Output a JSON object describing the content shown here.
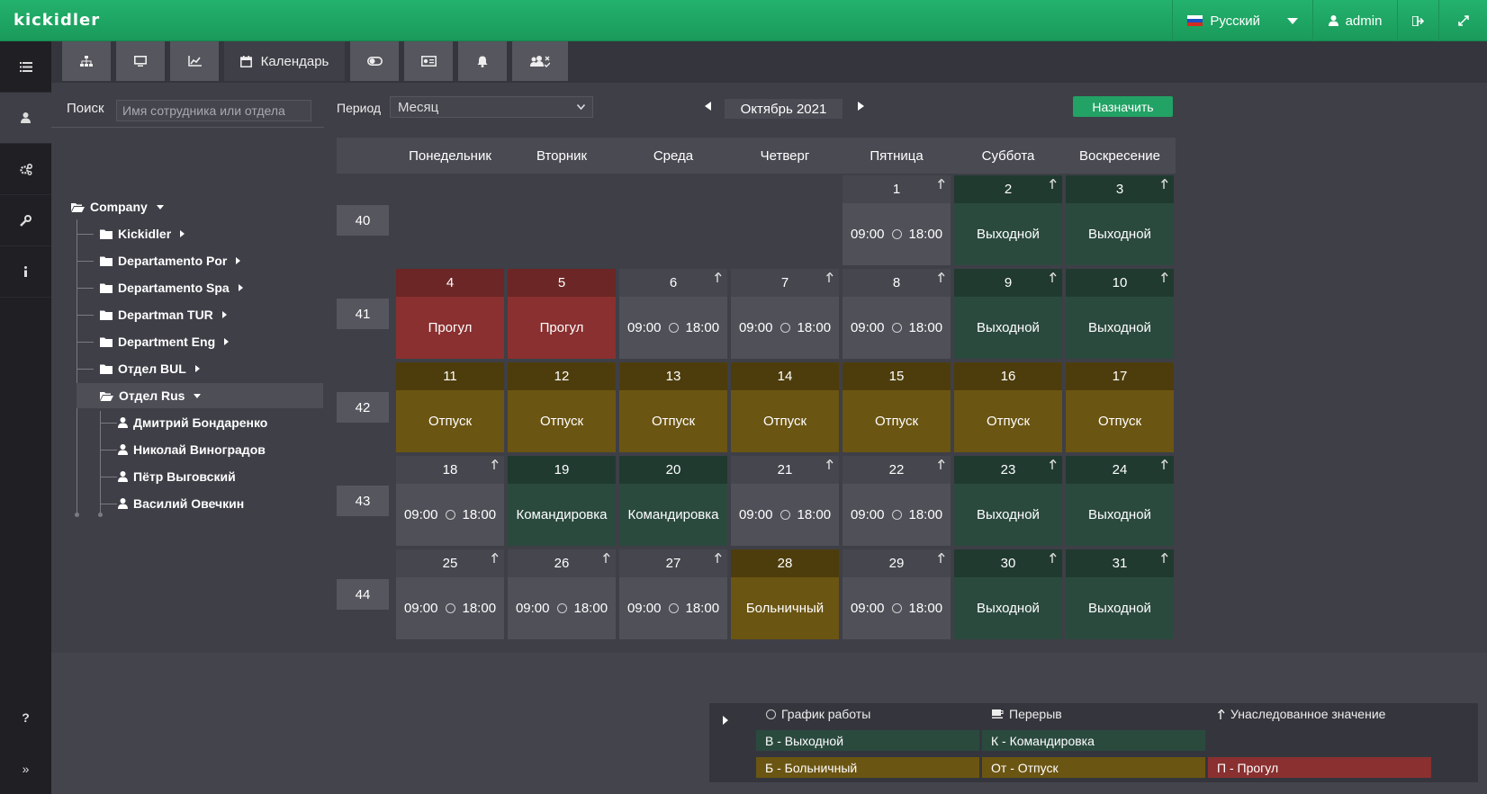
{
  "app": {
    "logo": "kickidler"
  },
  "topbar": {
    "language": "Русский",
    "user": "admin"
  },
  "tabs": [
    {
      "icon": "sitemap-icon"
    },
    {
      "icon": "monitor-icon"
    },
    {
      "icon": "chart-icon"
    },
    {
      "icon": "calendar-icon",
      "label": "Календарь"
    },
    {
      "icon": "toggle-icon"
    },
    {
      "icon": "id-card-icon"
    },
    {
      "icon": "bell-icon"
    },
    {
      "icon": "users-remove-icon"
    }
  ],
  "search": {
    "label": "Поиск",
    "placeholder": "Имя сотрудника или отдела"
  },
  "tree": {
    "root": "Company",
    "departments": [
      "Kickidler",
      "Departamento Por",
      "Departamento Spa",
      "Departman TUR",
      "Department Eng",
      "Отдел BUL",
      "Отдел Rus"
    ],
    "employees": [
      "Дмитрий Бондаренко",
      "Николай Виноградов",
      "Пётр Выговский",
      "Василий Овечкин"
    ]
  },
  "period": {
    "label": "Период",
    "value": "Месяц",
    "month": "Октябрь 2021",
    "assign": "Назначить"
  },
  "calendar": {
    "days": [
      "Понедельник",
      "Вторник",
      "Среда",
      "Четверг",
      "Пятница",
      "Суббота",
      "Воскресение"
    ],
    "weeks": [
      "40",
      "41",
      "42",
      "43",
      "44"
    ],
    "start": "09:00",
    "end": "18:00",
    "labels": {
      "off": "Выходной",
      "abs": "Прогул",
      "vac": "Отпуск",
      "trip": "Командировка",
      "sick": "Больничный"
    }
  },
  "legend": {
    "schedule": "График работы",
    "break": "Перерыв",
    "inherited": "Унаследованное значение",
    "off": "В - Выходной",
    "trip": "К - Командировка",
    "sick": "Б - Больничный",
    "vac": "От - Отпуск",
    "abs": "П - Прогул",
    "colors": {
      "off": "#2b4a3e",
      "vac": "#6b5512",
      "abs": "#8a3030"
    }
  }
}
